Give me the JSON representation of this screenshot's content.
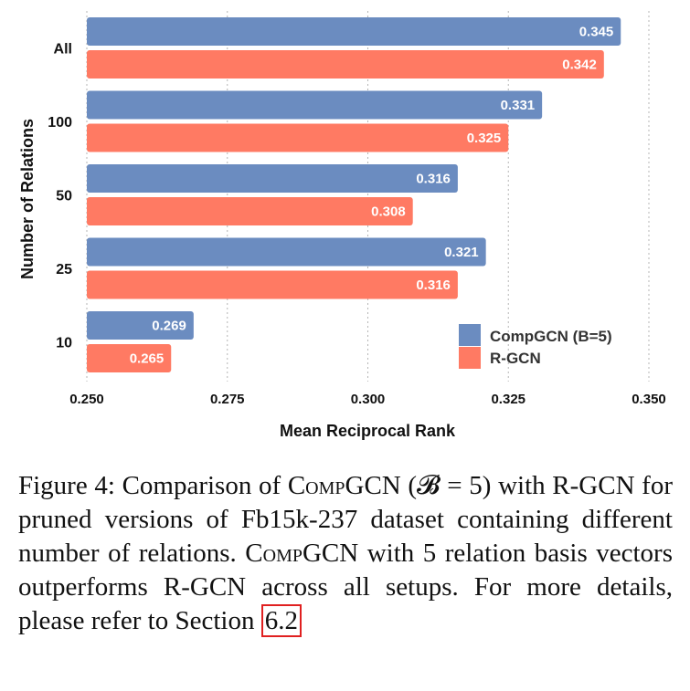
{
  "chart_data": {
    "type": "bar",
    "orientation": "horizontal",
    "categories": [
      "All",
      "100",
      "50",
      "25",
      "10"
    ],
    "series": [
      {
        "name": "CompGCN (B=5)",
        "color": "#6b8cc0",
        "values": [
          0.345,
          0.331,
          0.316,
          0.321,
          0.269
        ]
      },
      {
        "name": "R-GCN",
        "color": "#ff7a63",
        "values": [
          0.342,
          0.325,
          0.308,
          0.316,
          0.265
        ]
      }
    ],
    "value_labels": [
      [
        "0.345",
        "0.331",
        "0.316",
        "0.321",
        "0.269"
      ],
      [
        "0.342",
        "0.325",
        "0.308",
        "0.316",
        "0.265"
      ]
    ],
    "xlim": [
      0.25,
      0.35
    ],
    "xticks": [
      0.25,
      0.275,
      0.3,
      0.325,
      0.35
    ],
    "xtick_labels": [
      "0.250",
      "0.275",
      "0.300",
      "0.325",
      "0.350"
    ],
    "xlabel": "Mean Reciprocal Rank",
    "ylabel": "Number of Relations",
    "grid": "vertical-dotted",
    "legend": "bottom-right"
  },
  "caption": {
    "figure_label": "Figure 4:",
    "t1": " Comparison of ",
    "name1": "CompGCN",
    "t2": " (𝓑 = 5) with R-GCN for pruned versions of Fb15k-237 dataset containing different number of relations. ",
    "name2": "CompGCN",
    "t3": " with 5 relation basis vectors outperforms R-GCN across all setups. For more details, please refer to Section ",
    "ref": "6.2"
  }
}
